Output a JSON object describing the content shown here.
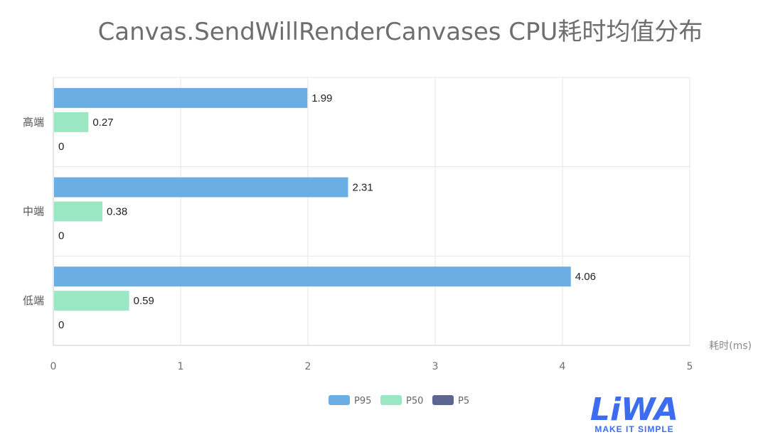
{
  "chart_data": {
    "type": "bar",
    "orientation": "horizontal",
    "title": "Canvas.SendWillRenderCanvases CPU耗时均值分布",
    "xlabel": "耗时(ms)",
    "ylabel": "",
    "xlim": [
      0,
      5
    ],
    "x_ticks": [
      "0",
      "1",
      "2",
      "3",
      "4",
      "5"
    ],
    "categories": [
      "高端",
      "中端",
      "低端"
    ],
    "series": [
      {
        "name": "P95",
        "color": "#6aaee3",
        "values": [
          1.99,
          2.31,
          4.06
        ]
      },
      {
        "name": "P50",
        "color": "#9be6c3",
        "values": [
          0.27,
          0.38,
          0.59
        ]
      },
      {
        "name": "P5",
        "color": "#5c6690",
        "values": [
          0,
          0,
          0
        ]
      }
    ],
    "grid": true,
    "legend_position": "bottom"
  },
  "logo": {
    "text": "LiWA",
    "tagline": "MAKE IT SIMPLE"
  }
}
